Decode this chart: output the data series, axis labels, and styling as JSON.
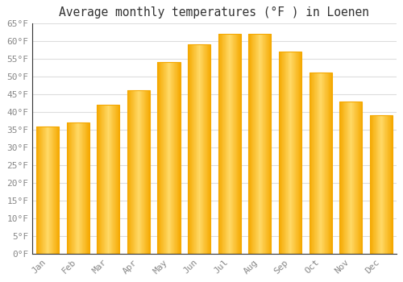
{
  "title": "Average monthly temperatures (°F ) in Loenen",
  "months": [
    "Jan",
    "Feb",
    "Mar",
    "Apr",
    "May",
    "Jun",
    "Jul",
    "Aug",
    "Sep",
    "Oct",
    "Nov",
    "Dec"
  ],
  "values": [
    36,
    37,
    42,
    46,
    54,
    59,
    62,
    62,
    57,
    51,
    43,
    39
  ],
  "bar_color_center": "#FFD966",
  "bar_color_edge": "#F5A800",
  "ylim": [
    0,
    65
  ],
  "yticks": [
    0,
    5,
    10,
    15,
    20,
    25,
    30,
    35,
    40,
    45,
    50,
    55,
    60,
    65
  ],
  "ytick_labels": [
    "0°F",
    "5°F",
    "10°F",
    "15°F",
    "20°F",
    "25°F",
    "30°F",
    "35°F",
    "40°F",
    "45°F",
    "50°F",
    "55°F",
    "60°F",
    "65°F"
  ],
  "bg_color": "#ffffff",
  "plot_bg_color": "#ffffff",
  "grid_color": "#dddddd",
  "title_fontsize": 10.5,
  "tick_fontsize": 8,
  "tick_color": "#888888",
  "bar_width": 0.75,
  "spine_color": "#333333"
}
